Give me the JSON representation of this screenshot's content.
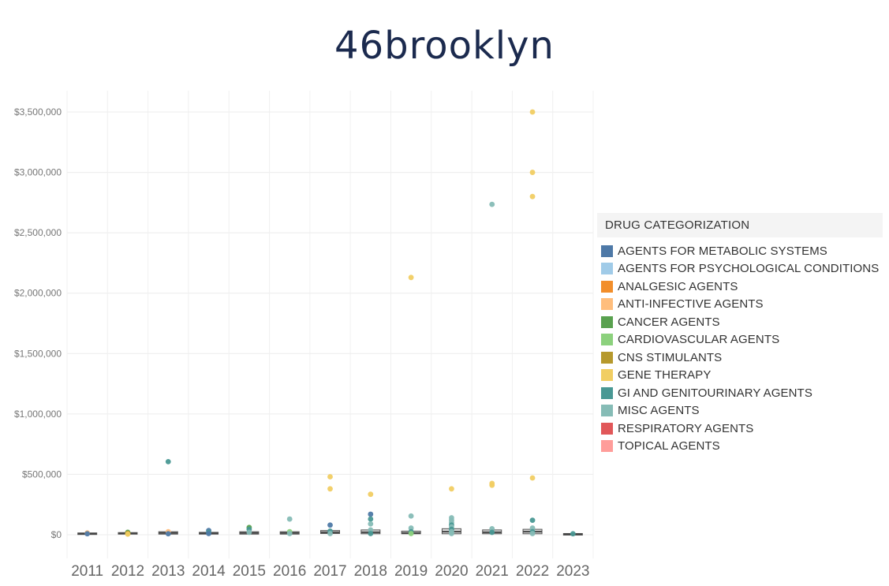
{
  "logo": {
    "text": "46brooklyn"
  },
  "chart_data": {
    "type": "scatter",
    "title": "",
    "xlabel": "",
    "ylabel": "",
    "categories": [
      "2011",
      "2012",
      "2013",
      "2014",
      "2015",
      "2016",
      "2017",
      "2018",
      "2019",
      "2020",
      "2021",
      "2022",
      "2023"
    ],
    "ylim": [
      0,
      3500000
    ],
    "yticks": [
      0,
      500000,
      1000000,
      1500000,
      2000000,
      2500000,
      3000000,
      3500000
    ],
    "ytick_labels": [
      "$0",
      "$500,000",
      "$1,000,000",
      "$1,500,000",
      "$2,000,000",
      "$2,500,000",
      "$3,000,000",
      "$3,500,000"
    ],
    "grid": true,
    "legend": {
      "title": "DRUG CATEGORIZATION",
      "placement": "right",
      "items": [
        {
          "name": "AGENTS FOR METABOLIC SYSTEMS",
          "color": "#4e79a7"
        },
        {
          "name": "AGENTS FOR PSYCHOLOGICAL CONDITIONS",
          "color": "#a0cbe8"
        },
        {
          "name": "ANALGESIC AGENTS",
          "color": "#f28e2b"
        },
        {
          "name": "ANTI-INFECTIVE AGENTS",
          "color": "#ffbe7d"
        },
        {
          "name": "CANCER AGENTS",
          "color": "#59a14f"
        },
        {
          "name": "CARDIOVASCULAR AGENTS",
          "color": "#8cd17d"
        },
        {
          "name": "CNS STIMULANTS",
          "color": "#b6992d"
        },
        {
          "name": "GENE THERAPY",
          "color": "#f1ce63"
        },
        {
          "name": "GI AND GENITOURINARY AGENTS",
          "color": "#499894"
        },
        {
          "name": "MISC AGENTS",
          "color": "#86bcb6"
        },
        {
          "name": "RESPIRATORY AGENTS",
          "color": "#e15759"
        },
        {
          "name": "TOPICAL AGENTS",
          "color": "#ff9d9a"
        }
      ]
    },
    "boxplots": [
      {
        "year": "2011",
        "q1": 5000,
        "median": 8000,
        "q3": 15000
      },
      {
        "year": "2012",
        "q1": 5000,
        "median": 10000,
        "q3": 18000
      },
      {
        "year": "2013",
        "q1": 5000,
        "median": 15000,
        "q3": 25000
      },
      {
        "year": "2014",
        "q1": 5000,
        "median": 12000,
        "q3": 20000
      },
      {
        "year": "2015",
        "q1": 5000,
        "median": 15000,
        "q3": 25000
      },
      {
        "year": "2016",
        "q1": 5000,
        "median": 15000,
        "q3": 25000
      },
      {
        "year": "2017",
        "q1": 10000,
        "median": 20000,
        "q3": 35000
      },
      {
        "year": "2018",
        "q1": 8000,
        "median": 20000,
        "q3": 40000
      },
      {
        "year": "2019",
        "q1": 8000,
        "median": 15000,
        "q3": 30000
      },
      {
        "year": "2020",
        "q1": 8000,
        "median": 25000,
        "q3": 50000
      },
      {
        "year": "2021",
        "q1": 8000,
        "median": 20000,
        "q3": 40000
      },
      {
        "year": "2022",
        "q1": 8000,
        "median": 25000,
        "q3": 45000
      },
      {
        "year": "2023",
        "q1": 3000,
        "median": 6000,
        "q3": 10000
      }
    ],
    "points": [
      {
        "year": "2011",
        "value": 15000,
        "category": "ANTI-INFECTIVE AGENTS"
      },
      {
        "year": "2011",
        "value": 8000,
        "category": "AGENTS FOR METABOLIC SYSTEMS"
      },
      {
        "year": "2012",
        "value": 20000,
        "category": "CANCER AGENTS"
      },
      {
        "year": "2012",
        "value": 12000,
        "category": "CNS STIMULANTS"
      },
      {
        "year": "2012",
        "value": 5000,
        "category": "GENE THERAPY"
      },
      {
        "year": "2013",
        "value": 605000,
        "category": "GI AND GENITOURINARY AGENTS"
      },
      {
        "year": "2013",
        "value": 25000,
        "category": "ANTI-INFECTIVE AGENTS"
      },
      {
        "year": "2013",
        "value": 8000,
        "category": "AGENTS FOR METABOLIC SYSTEMS"
      },
      {
        "year": "2014",
        "value": 35000,
        "category": "AGENTS FOR METABOLIC SYSTEMS"
      },
      {
        "year": "2014",
        "value": 20000,
        "category": "GI AND GENITOURINARY AGENTS"
      },
      {
        "year": "2014",
        "value": 10000,
        "category": "AGENTS FOR METABOLIC SYSTEMS"
      },
      {
        "year": "2015",
        "value": 60000,
        "category": "CANCER AGENTS"
      },
      {
        "year": "2015",
        "value": 45000,
        "category": "GI AND GENITOURINARY AGENTS"
      },
      {
        "year": "2015",
        "value": 20000,
        "category": "MISC AGENTS"
      },
      {
        "year": "2016",
        "value": 130000,
        "category": "MISC AGENTS"
      },
      {
        "year": "2016",
        "value": 25000,
        "category": "CARDIOVASCULAR AGENTS"
      },
      {
        "year": "2016",
        "value": 10000,
        "category": "MISC AGENTS"
      },
      {
        "year": "2017",
        "value": 480000,
        "category": "GENE THERAPY"
      },
      {
        "year": "2017",
        "value": 380000,
        "category": "GENE THERAPY"
      },
      {
        "year": "2017",
        "value": 80000,
        "category": "AGENTS FOR METABOLIC SYSTEMS"
      },
      {
        "year": "2017",
        "value": 30000,
        "category": "GI AND GENITOURINARY AGENTS"
      },
      {
        "year": "2017",
        "value": 10000,
        "category": "MISC AGENTS"
      },
      {
        "year": "2018",
        "value": 335000,
        "category": "GENE THERAPY"
      },
      {
        "year": "2018",
        "value": 170000,
        "category": "AGENTS FOR METABOLIC SYSTEMS"
      },
      {
        "year": "2018",
        "value": 130000,
        "category": "GI AND GENITOURINARY AGENTS"
      },
      {
        "year": "2018",
        "value": 90000,
        "category": "MISC AGENTS"
      },
      {
        "year": "2018",
        "value": 40000,
        "category": "MISC AGENTS"
      },
      {
        "year": "2018",
        "value": 10000,
        "category": "GI AND GENITOURINARY AGENTS"
      },
      {
        "year": "2019",
        "value": 2130000,
        "category": "GENE THERAPY"
      },
      {
        "year": "2019",
        "value": 155000,
        "category": "MISC AGENTS"
      },
      {
        "year": "2019",
        "value": 55000,
        "category": "MISC AGENTS"
      },
      {
        "year": "2019",
        "value": 25000,
        "category": "GI AND GENITOURINARY AGENTS"
      },
      {
        "year": "2019",
        "value": 10000,
        "category": "CARDIOVASCULAR AGENTS"
      },
      {
        "year": "2020",
        "value": 380000,
        "category": "GENE THERAPY"
      },
      {
        "year": "2020",
        "value": 140000,
        "category": "MISC AGENTS"
      },
      {
        "year": "2020",
        "value": 120000,
        "category": "MISC AGENTS"
      },
      {
        "year": "2020",
        "value": 100000,
        "category": "MISC AGENTS"
      },
      {
        "year": "2020",
        "value": 80000,
        "category": "GI AND GENITOURINARY AGENTS"
      },
      {
        "year": "2020",
        "value": 65000,
        "category": "MISC AGENTS"
      },
      {
        "year": "2020",
        "value": 45000,
        "category": "GI AND GENITOURINARY AGENTS"
      },
      {
        "year": "2020",
        "value": 25000,
        "category": "MISC AGENTS"
      },
      {
        "year": "2020",
        "value": 10000,
        "category": "MISC AGENTS"
      },
      {
        "year": "2021",
        "value": 2735000,
        "category": "MISC AGENTS"
      },
      {
        "year": "2021",
        "value": 425000,
        "category": "GENE THERAPY"
      },
      {
        "year": "2021",
        "value": 410000,
        "category": "GENE THERAPY"
      },
      {
        "year": "2021",
        "value": 50000,
        "category": "MISC AGENTS"
      },
      {
        "year": "2021",
        "value": 20000,
        "category": "GI AND GENITOURINARY AGENTS"
      },
      {
        "year": "2022",
        "value": 3500000,
        "category": "GENE THERAPY"
      },
      {
        "year": "2022",
        "value": 3000000,
        "category": "GENE THERAPY"
      },
      {
        "year": "2022",
        "value": 2800000,
        "category": "GENE THERAPY"
      },
      {
        "year": "2022",
        "value": 470000,
        "category": "GENE THERAPY"
      },
      {
        "year": "2022",
        "value": 120000,
        "category": "GI AND GENITOURINARY AGENTS"
      },
      {
        "year": "2022",
        "value": 55000,
        "category": "MISC AGENTS"
      },
      {
        "year": "2022",
        "value": 25000,
        "category": "GI AND GENITOURINARY AGENTS"
      },
      {
        "year": "2022",
        "value": 10000,
        "category": "MISC AGENTS"
      },
      {
        "year": "2023",
        "value": 8000,
        "category": "GI AND GENITOURINARY AGENTS"
      }
    ]
  }
}
